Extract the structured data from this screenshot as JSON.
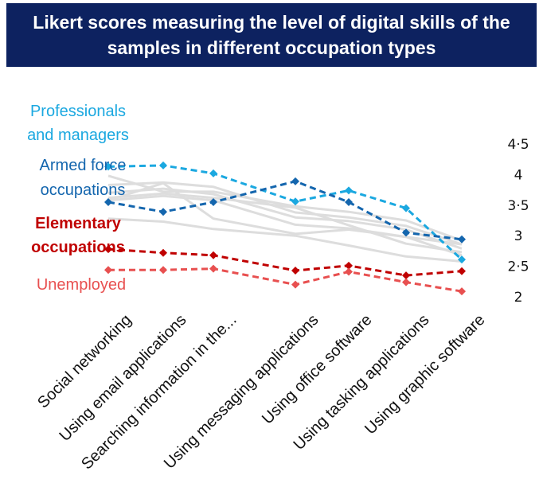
{
  "title": {
    "line1": "Likert scores measuring the level of digital skills of the",
    "line2": "samples in different occupation types"
  },
  "chart_data": {
    "type": "line",
    "categories": [
      "Social networking",
      "Using email applications",
      "Searching information in the...",
      "Using messaging applications",
      "Using office software",
      "Using tasking applications",
      "Using graphic software"
    ],
    "ylim": [
      2,
      4.5
    ],
    "yticks": [
      "4.5",
      "4",
      "3.5",
      "3",
      "2.5",
      "2"
    ],
    "y_axis_position": "right",
    "grid": false,
    "legend": "labels-left",
    "series": [
      {
        "name": "Professionals and managers",
        "label_lines": [
          "Professionals",
          "and managers"
        ],
        "color": "#1ba8e0",
        "highlight": true,
        "values": [
          4.13,
          4.15,
          4.02,
          3.56,
          3.74,
          3.45,
          2.61
        ]
      },
      {
        "name": "Armed force occupations",
        "label_lines": [
          "Armed force",
          "occupations"
        ],
        "color": "#1466ae",
        "highlight": true,
        "values": [
          3.55,
          3.39,
          3.55,
          3.89,
          3.55,
          3.05,
          2.94
        ]
      },
      {
        "name": "Elementary occupations",
        "label_lines": [
          "Elementary",
          "occupations"
        ],
        "color": "#c00000",
        "highlight": true,
        "bold": true,
        "values": [
          2.78,
          2.72,
          2.68,
          2.43,
          2.51,
          2.35,
          2.42
        ]
      },
      {
        "name": "Unemployed",
        "label_lines": [
          "Unemployed"
        ],
        "color": "#e85050",
        "highlight": true,
        "values": [
          2.44,
          2.44,
          2.46,
          2.2,
          2.41,
          2.24,
          2.09
        ]
      },
      {
        "color": "#dddddd",
        "highlight": false,
        "values": [
          3.98,
          3.72,
          3.72,
          3.48,
          3.39,
          3.25,
          2.92
        ]
      },
      {
        "color": "#dddddd",
        "highlight": false,
        "values": [
          3.83,
          3.87,
          3.8,
          3.38,
          3.3,
          3.16,
          2.86
        ]
      },
      {
        "color": "#dddddd",
        "highlight": false,
        "values": [
          3.7,
          3.77,
          3.68,
          3.3,
          3.24,
          3.1,
          2.79
        ]
      },
      {
        "color": "#dddddd",
        "highlight": false,
        "values": [
          3.62,
          3.69,
          3.62,
          3.46,
          3.17,
          2.87,
          2.73
        ]
      },
      {
        "color": "#dddddd",
        "highlight": false,
        "values": [
          3.58,
          3.86,
          3.28,
          3.03,
          3.1,
          2.98,
          2.68
        ]
      },
      {
        "color": "#dddddd",
        "highlight": false,
        "values": [
          3.28,
          3.23,
          3.11,
          3.0,
          2.84,
          2.66,
          2.58
        ]
      },
      {
        "color": "#dddddd",
        "highlight": false,
        "values": [
          3.58,
          3.65,
          3.58,
          3.18,
          3.12,
          2.98,
          2.86
        ]
      }
    ]
  }
}
